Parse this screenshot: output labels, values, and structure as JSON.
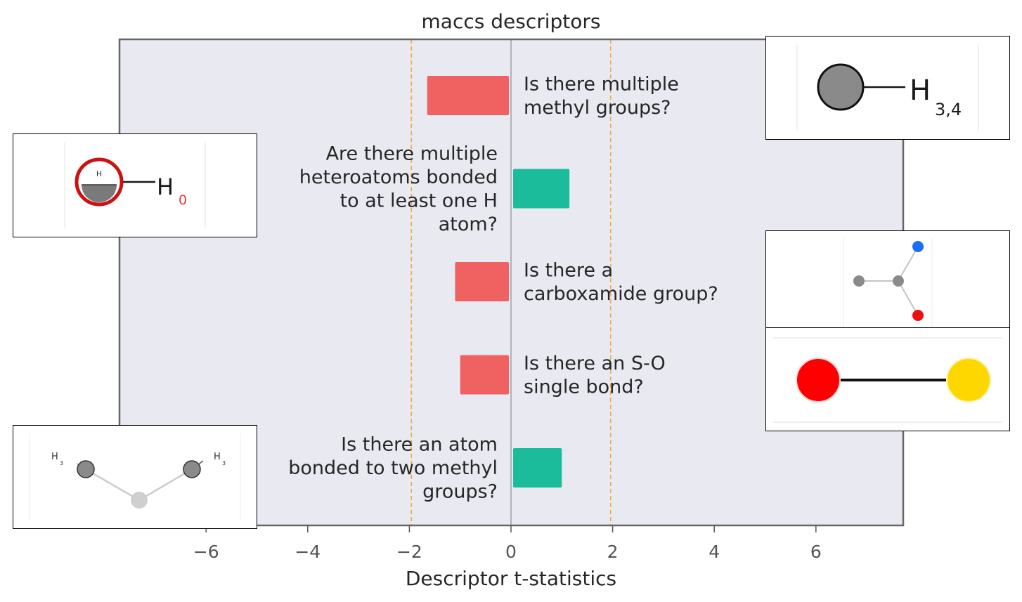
{
  "chart_data": {
    "type": "bar",
    "orientation": "horizontal",
    "title": "maccs descriptors",
    "xlabel": "Descriptor t-statistics",
    "xlim": [
      -7.8,
      7.8
    ],
    "xticks": [
      -6,
      -4,
      -2,
      0,
      2,
      4,
      6
    ],
    "xtick_labels": [
      "−6",
      "−4",
      "−2",
      "0",
      "2",
      "4",
      "6"
    ],
    "threshold_lines": [
      -1.96,
      1.96
    ],
    "grid": false,
    "categories": [
      "Is there multiple methyl groups?",
      "Are there multiple heteroatoms bonded to at least one H atom?",
      "Is there a carboxamide group?",
      "Is there an S-O single bond?",
      "Is there an atom bonded to two methyl groups?"
    ],
    "label_lines": [
      [
        "Is there multiple",
        "methyl groups?"
      ],
      [
        "Are there multiple",
        "heteroatoms bonded",
        "to at least one H",
        "atom?"
      ],
      [
        "Is there a",
        "carboxamide group?"
      ],
      [
        "Is there an S-O",
        "single bond?"
      ],
      [
        "Is there an atom",
        "bonded to two methyl",
        "groups?"
      ]
    ],
    "values": [
      -1.65,
      1.15,
      -1.1,
      -1.0,
      1.0
    ]
  },
  "colors": {
    "negative": "#f06262",
    "positive": "#1abc9c",
    "plot_bg": "#e9eaf1",
    "threshold": "#f5a742",
    "zero_line": "#8c8c8c",
    "frame": "#666666"
  },
  "insets": {
    "methyl": {
      "label": "H",
      "subscript": "3,4"
    },
    "hydroxyl": {
      "label": "H",
      "subscript": "0",
      "atom_label": "H"
    },
    "dimethyl": {
      "label_left": "H",
      "sub_left": "3",
      "label_right": "H",
      "sub_right": "3"
    }
  }
}
